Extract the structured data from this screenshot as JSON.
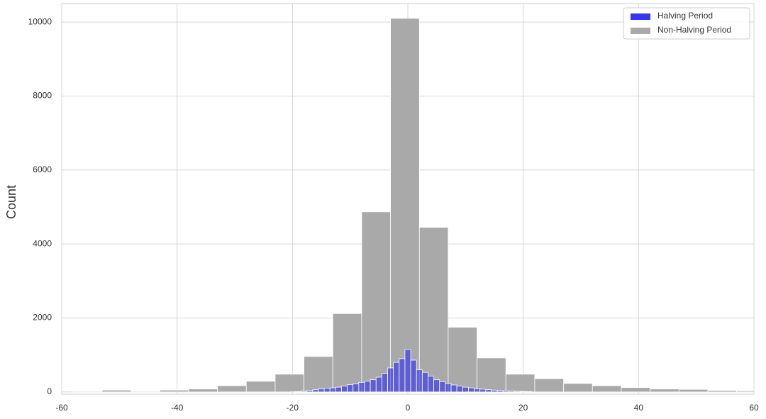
{
  "chart_data": {
    "type": "histogram",
    "y_label": "Count",
    "xlim": [
      -60,
      60
    ],
    "xticks": [
      -60,
      -40,
      -20,
      0,
      20,
      40,
      60
    ],
    "ylim": [
      -60,
      10500
    ],
    "yticks": [
      0,
      2000,
      4000,
      6000,
      8000,
      10000
    ],
    "grid": true,
    "legend": "upper right",
    "alpha": 0.55,
    "series": [
      {
        "name": "Halving Period",
        "color": "#2020f0",
        "bins": [
          -20.5,
          -19.5,
          -18.5,
          -17.5,
          -16.5,
          -15.5,
          -14.5,
          -13.5,
          -12.5,
          -11.5,
          -10.5,
          -9.5,
          -8.5,
          -7.5,
          -6.5,
          -5.5,
          -4.5,
          -3.5,
          -2.5,
          -1.5,
          -0.5,
          0.5,
          1.5,
          2.5,
          3.5,
          4.5,
          5.5,
          6.5,
          7.5,
          8.5,
          9.5,
          10.5,
          11.5,
          12.5,
          13.5,
          14.5,
          15.5,
          16.5,
          17.5,
          18.5,
          19.5,
          20.5,
          21.5
        ],
        "values": [
          5,
          10,
          20,
          40,
          60,
          80,
          100,
          110,
          130,
          160,
          200,
          220,
          260,
          290,
          330,
          400,
          500,
          650,
          800,
          900,
          1150,
          860,
          600,
          530,
          430,
          330,
          280,
          230,
          190,
          160,
          130,
          110,
          90,
          75,
          60,
          50,
          40,
          30,
          25,
          20,
          15,
          10
        ]
      },
      {
        "name": "Non-Halving Period",
        "color": "#a9a9a9",
        "bins": [
          -58,
          -53,
          -48,
          -43,
          -38,
          -33,
          -28,
          -23,
          -18,
          -13,
          -8,
          -3,
          2,
          7,
          12,
          17,
          22,
          27,
          32,
          37,
          42,
          47,
          52,
          57,
          62
        ],
        "values": [
          20,
          50,
          20,
          50,
          80,
          170,
          290,
          480,
          960,
          2120,
          4870,
          10100,
          4450,
          1750,
          920,
          480,
          360,
          230,
          170,
          120,
          80,
          70,
          40,
          30
        ]
      }
    ]
  }
}
